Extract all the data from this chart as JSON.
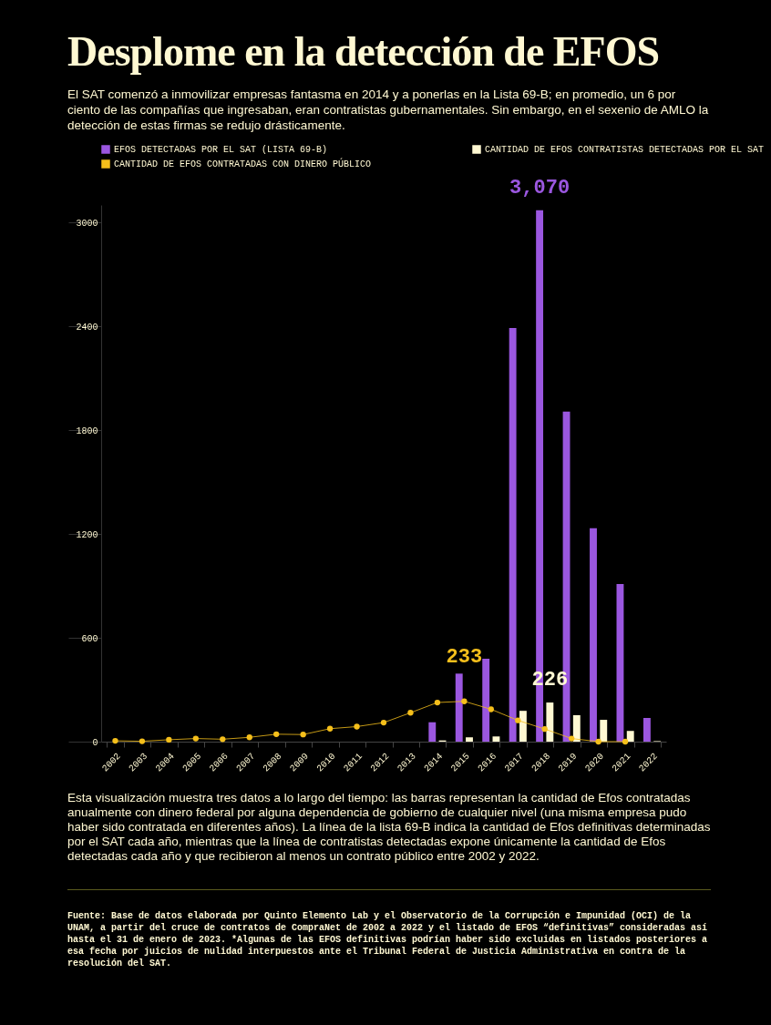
{
  "chart_data": {
    "type": "bar",
    "title": "Desplome en la detección de EFOS",
    "subtitle": "El SAT comenzó a inmovilizar empresas fantasma en 2014 y a ponerlas en la Lista 69-B; en promedio, un 6 por ciento de las compañías que ingresaban, eran contratistas gubernamentales. Sin embargo, en el sexenio de AMLO la detección de estas firmas se redujo drásticamente.",
    "categories": [
      "2002",
      "2003",
      "2004",
      "2005",
      "2006",
      "2007",
      "2008",
      "2009",
      "2010",
      "2011",
      "2012",
      "2013",
      "2014",
      "2015",
      "2016",
      "2017",
      "2018",
      "2019",
      "2020",
      "2021",
      "2022"
    ],
    "series": [
      {
        "name": "EFOS DETECTADAS POR EL SAT (LISTA 69-B)",
        "type": "bar",
        "color": "#9b57e0",
        "values": [
          null,
          null,
          null,
          null,
          null,
          null,
          null,
          null,
          null,
          null,
          null,
          null,
          112,
          393,
          479,
          2390,
          3070,
          1907,
          1233,
          911,
          137
        ],
        "value_labels": [
          null,
          null,
          null,
          null,
          null,
          null,
          null,
          null,
          null,
          null,
          null,
          null,
          null,
          null,
          null,
          null,
          "3,070",
          null,
          null,
          null,
          null
        ]
      },
      {
        "name": "CANTIDAD DE EFOS CONTRATISTAS DETECTADAS POR EL SAT",
        "type": "bar",
        "color": "#fff8d2",
        "values": [
          null,
          null,
          null,
          null,
          null,
          null,
          null,
          null,
          null,
          null,
          null,
          null,
          7,
          25,
          30,
          178,
          226,
          153,
          126,
          62,
          3
        ],
        "value_labels": [
          null,
          null,
          null,
          null,
          null,
          null,
          null,
          null,
          null,
          null,
          null,
          null,
          null,
          null,
          null,
          null,
          "226",
          null,
          null,
          null,
          null
        ]
      },
      {
        "name": "CANTIDAD DE EFOS CONTRATADAS CON DINERO PÚBLICO",
        "type": "line",
        "color": "#f5bf1b",
        "marker": "circle",
        "values": [
          5,
          2,
          11,
          18,
          14,
          25,
          43,
          41,
          75,
          87,
          110,
          167,
          226,
          233,
          187,
          123,
          73,
          18,
          0,
          0,
          null
        ],
        "value_labels": [
          null,
          null,
          null,
          null,
          null,
          null,
          null,
          null,
          null,
          null,
          null,
          null,
          null,
          "233",
          null,
          null,
          null,
          null,
          null,
          null,
          null
        ]
      }
    ],
    "ylim": [
      0,
      3100
    ],
    "yticks": [
      0,
      600,
      1200,
      1800,
      2400,
      3000
    ],
    "grid": false,
    "legend": "top",
    "annotations": [
      "Esta visualización muestra tres datos a lo largo del tiempo: las barras representan la cantidad de Efos contratadas anualmente con dinero federal por alguna dependencia de gobierno de cualquier nivel (una misma empresa pudo haber sido contratada en diferentes años). La línea de la lista 69-B indica la cantidad de Efos definitivas determinadas por el SAT cada año, mientras que la línea de contratistas detectadas expone únicamente la cantidad de Efos detectadas cada año y que recibieron al menos un contrato público entre 2002 y 2022.",
      "Fuente: Base de datos elaborada por Quinto Elemento Lab y el Observatorio de la Corrupción e Impunidad (OCI) de la UNAM, a partir del cruce de contratos de CompraNet de 2002 a 2022 y el listado de EFOS “definitivas” consideradas así hasta el 31 de enero de 2023. *Algunas de las EFOS definitivas podrían haber sido excluidas en listados posteriores a esa fecha por juicios de nulidad interpuestos ante el Tribunal Federal de Justicia Administrativa en contra de la resolución del SAT."
    ]
  }
}
